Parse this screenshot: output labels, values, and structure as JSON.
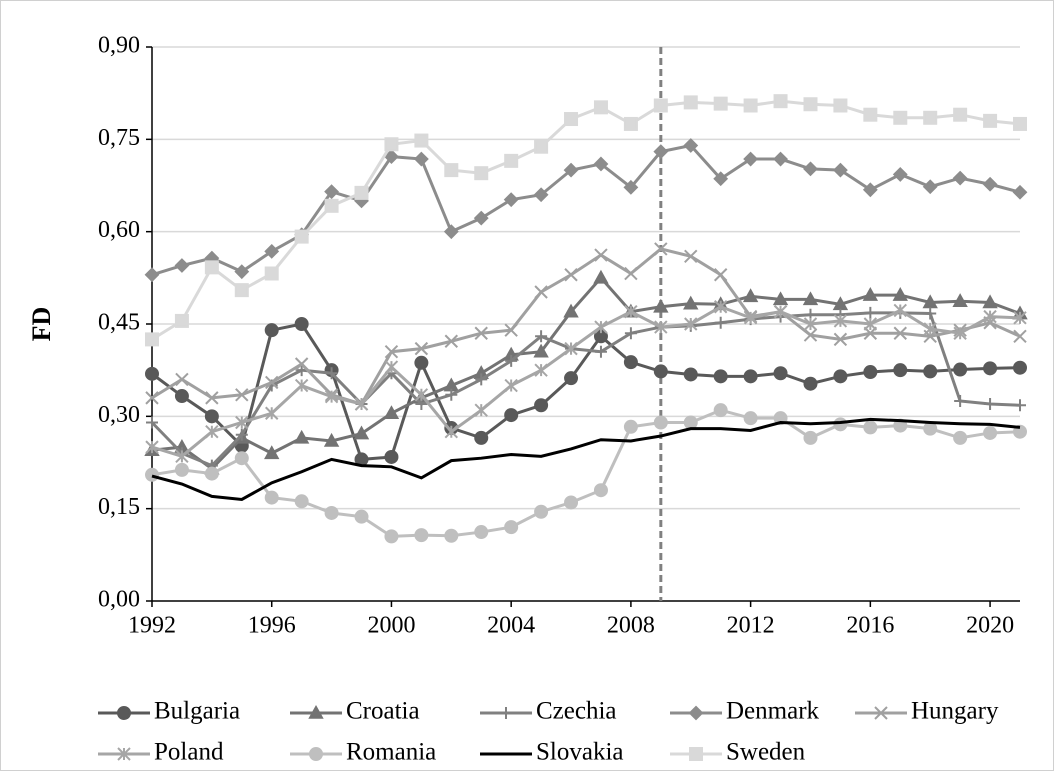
{
  "chart_data": {
    "type": "line",
    "y_label": "FD",
    "x": [
      1992,
      1993,
      1994,
      1995,
      1996,
      1997,
      1998,
      1999,
      2000,
      2001,
      2002,
      2003,
      2004,
      2005,
      2006,
      2007,
      2008,
      2009,
      2010,
      2011,
      2012,
      2013,
      2014,
      2015,
      2016,
      2017,
      2018,
      2019,
      2020,
      2021
    ],
    "xlim": [
      1992,
      2021
    ],
    "xticks": [
      1992,
      1996,
      2000,
      2004,
      2008,
      2012,
      2016,
      2020
    ],
    "ylim": [
      0,
      0.9
    ],
    "yticks": [
      {
        "value": 0,
        "label": "0,00"
      },
      {
        "value": 0.15,
        "label": "0,15"
      },
      {
        "value": 0.3,
        "label": "0,30"
      },
      {
        "value": 0.45,
        "label": "0,45"
      },
      {
        "value": 0.6,
        "label": "0,60"
      },
      {
        "value": 0.75,
        "label": "0,75"
      },
      {
        "value": 0.9,
        "label": "0,90"
      }
    ],
    "grid": true,
    "reference_line_x": 2009,
    "legend": "bottom",
    "series": [
      {
        "name": "Bulgaria",
        "color": "#595959",
        "marker": "circle",
        "values": [
          0.369,
          0.333,
          0.3,
          0.252,
          0.44,
          0.45,
          0.375,
          0.23,
          0.234,
          0.387,
          0.281,
          0.265,
          0.302,
          0.318,
          0.362,
          0.43,
          0.388,
          0.373,
          0.368,
          0.365,
          0.365,
          0.37,
          0.353,
          0.365,
          0.372,
          0.375,
          0.373,
          0.376,
          0.378,
          0.379
        ]
      },
      {
        "name": "Croatia",
        "color": "#737373",
        "marker": "triangle",
        "values": [
          0.245,
          0.25,
          0.215,
          0.265,
          0.24,
          0.265,
          0.26,
          0.272,
          0.305,
          0.33,
          0.35,
          0.37,
          0.4,
          0.405,
          0.47,
          0.525,
          0.47,
          0.478,
          0.483,
          0.482,
          0.495,
          0.49,
          0.49,
          0.482,
          0.497,
          0.497,
          0.485,
          0.487,
          0.485,
          0.467
        ]
      },
      {
        "name": "Czechia",
        "color": "#808080",
        "marker": "plus",
        "values": [
          0.29,
          0.24,
          0.22,
          0.27,
          0.35,
          0.375,
          0.37,
          0.32,
          0.37,
          0.32,
          0.335,
          0.36,
          0.39,
          0.43,
          0.41,
          0.405,
          0.435,
          0.445,
          0.447,
          0.452,
          0.458,
          0.462,
          0.465,
          0.465,
          0.468,
          0.468,
          0.467,
          0.325,
          0.32,
          0.318
        ]
      },
      {
        "name": "Denmark",
        "color": "#8c8c8c",
        "marker": "diamond",
        "values": [
          0.53,
          0.545,
          0.557,
          0.535,
          0.568,
          0.595,
          0.665,
          0.65,
          0.722,
          0.718,
          0.6,
          0.622,
          0.652,
          0.66,
          0.7,
          0.71,
          0.672,
          0.73,
          0.74,
          0.686,
          0.718,
          0.718,
          0.702,
          0.7,
          0.668,
          0.693,
          0.673,
          0.687,
          0.677,
          0.664
        ]
      },
      {
        "name": "Hungary",
        "color": "#a0a0a0",
        "marker": "x",
        "values": [
          0.33,
          0.36,
          0.33,
          0.335,
          0.355,
          0.385,
          0.335,
          0.32,
          0.405,
          0.41,
          0.422,
          0.435,
          0.44,
          0.502,
          0.53,
          0.562,
          0.532,
          0.572,
          0.56,
          0.53,
          0.462,
          0.47,
          0.432,
          0.425,
          0.435,
          0.435,
          0.43,
          0.44,
          0.452,
          0.43
        ]
      },
      {
        "name": "Poland",
        "color": "#a6a6a6",
        "marker": "star",
        "values": [
          0.25,
          0.235,
          0.275,
          0.29,
          0.305,
          0.35,
          0.332,
          0.32,
          0.38,
          0.335,
          0.275,
          0.31,
          0.35,
          0.375,
          0.41,
          0.445,
          0.47,
          0.445,
          0.45,
          0.478,
          0.46,
          0.47,
          0.45,
          0.455,
          0.45,
          0.472,
          0.442,
          0.435,
          0.462,
          0.46
        ]
      },
      {
        "name": "Romania",
        "color": "#bfbfbf",
        "marker": "circle",
        "values": [
          0.205,
          0.213,
          0.207,
          0.232,
          0.168,
          0.162,
          0.143,
          0.137,
          0.105,
          0.107,
          0.106,
          0.112,
          0.12,
          0.145,
          0.16,
          0.18,
          0.283,
          0.29,
          0.29,
          0.31,
          0.297,
          0.297,
          0.265,
          0.287,
          0.282,
          0.285,
          0.28,
          0.265,
          0.273,
          0.275
        ]
      },
      {
        "name": "Slovakia",
        "color": "#000000",
        "marker": "none",
        "values": [
          0.203,
          0.19,
          0.17,
          0.165,
          0.192,
          0.21,
          0.23,
          0.22,
          0.218,
          0.2,
          0.228,
          0.232,
          0.238,
          0.235,
          0.247,
          0.262,
          0.26,
          0.268,
          0.28,
          0.28,
          0.277,
          0.29,
          0.288,
          0.29,
          0.295,
          0.293,
          0.29,
          0.288,
          0.287,
          0.282
        ]
      },
      {
        "name": "Sweden",
        "color": "#d9d9d9",
        "marker": "square",
        "values": [
          0.425,
          0.455,
          0.542,
          0.505,
          0.532,
          0.592,
          0.642,
          0.663,
          0.742,
          0.748,
          0.7,
          0.695,
          0.715,
          0.738,
          0.783,
          0.802,
          0.775,
          0.805,
          0.81,
          0.808,
          0.805,
          0.812,
          0.807,
          0.805,
          0.79,
          0.785,
          0.785,
          0.79,
          0.78,
          0.775
        ]
      }
    ]
  }
}
